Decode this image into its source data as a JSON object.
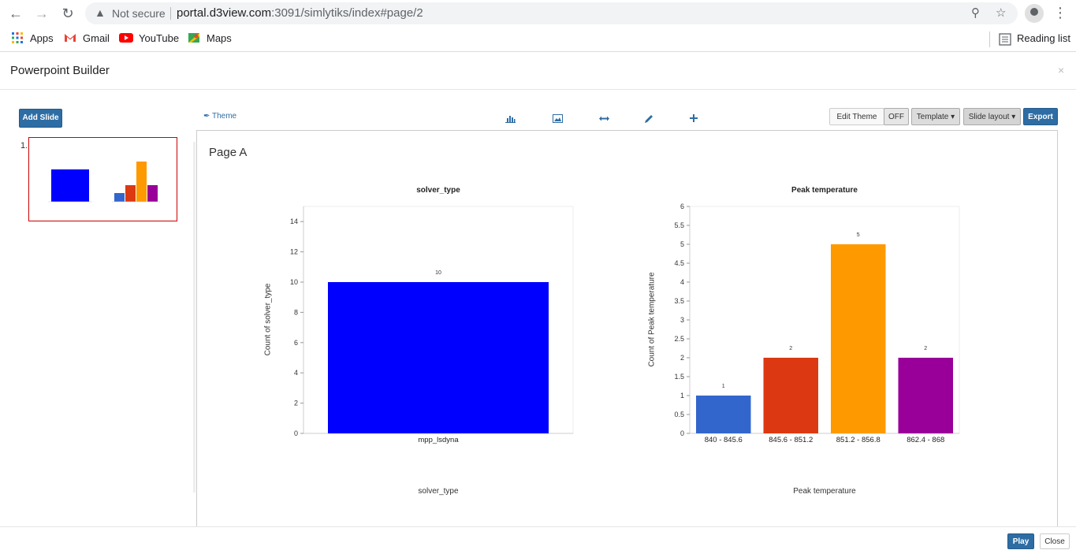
{
  "browser": {
    "security_label": "Not secure",
    "url_host": "portal.d3view.com",
    "url_rest": ":3091/simlytiks/index#page/2",
    "bookmarks": [
      "Apps",
      "Gmail",
      "YouTube",
      "Maps"
    ],
    "reading_list": "Reading list"
  },
  "app": {
    "title": "Powerpoint Builder",
    "close_symbol": "×",
    "add_slide": "Add Slide",
    "theme_link": "Theme",
    "toolbar_icons": [
      "bar-chart-icon",
      "image-icon",
      "resize-horizontal-icon",
      "pencil-icon",
      "plus-icon"
    ],
    "edit_theme": "Edit Theme",
    "edit_theme_state": "OFF",
    "template": "Template",
    "slide_layout": "Slide layout",
    "export": "Export",
    "slide_number": "1.",
    "play": "Play",
    "close": "Close"
  },
  "page": {
    "title": "Page A"
  },
  "chart_data": [
    {
      "type": "bar",
      "title": "solver_type",
      "categories": [
        "mpp_lsdyna"
      ],
      "values": [
        10
      ],
      "colors": [
        "#0000ff"
      ],
      "xlabel": "solver_type",
      "ylabel": "Count of solver_type",
      "ylim": [
        0,
        15
      ],
      "yticks": [
        0,
        2,
        4,
        6,
        8,
        10,
        12,
        14
      ],
      "grid": false
    },
    {
      "type": "bar",
      "title": "Peak temperature",
      "categories": [
        "840 - 845.6",
        "845.6 - 851.2",
        "851.2 - 856.8",
        "862.4 - 868"
      ],
      "values": [
        1,
        2,
        5,
        2
      ],
      "colors": [
        "#3366cc",
        "#dc3912",
        "#ff9900",
        "#990099"
      ],
      "xlabel": "Peak temperature",
      "ylabel": "Count of Peak temperature",
      "ylim": [
        0,
        6
      ],
      "yticks": [
        0,
        0.5,
        1,
        1.5,
        2,
        2.5,
        3,
        3.5,
        4,
        4.5,
        5,
        5.5,
        6
      ],
      "grid": false
    }
  ]
}
